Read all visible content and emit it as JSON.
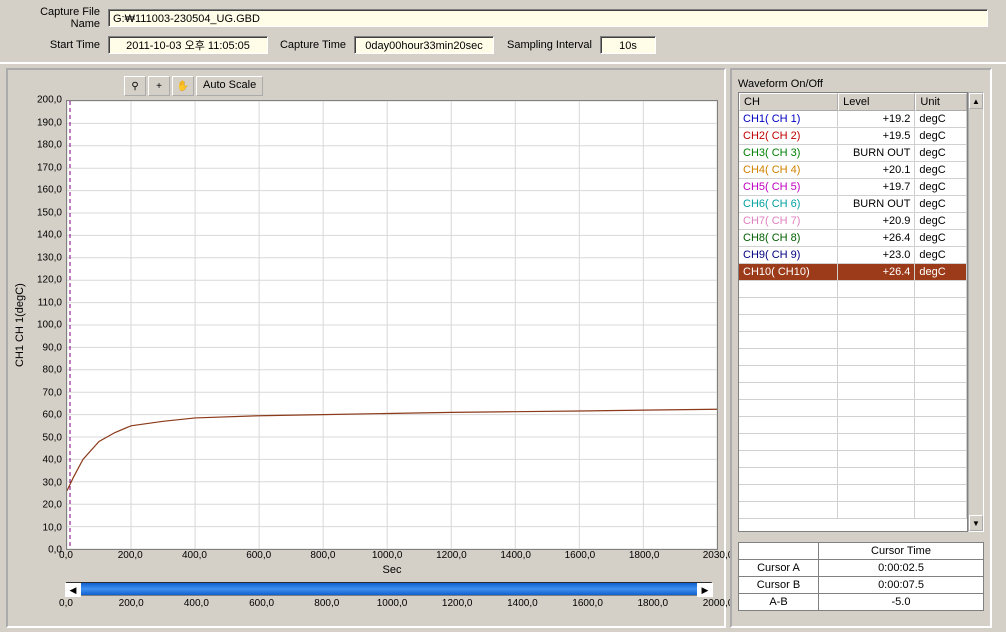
{
  "header": {
    "capture_file_label": "Capture File Name",
    "capture_file_value": "G:₩111003-230504_UG.GBD",
    "start_time_label": "Start Time",
    "start_time_value": "2011-10-03 오후 11:05:05",
    "capture_time_label": "Capture Time",
    "capture_time_value": "0day00hour33min20sec",
    "sampling_label": "Sampling Interval",
    "sampling_value": "10s"
  },
  "toolbar": {
    "zoom_icon": "⚲",
    "cross_icon": "+",
    "pan_icon": "✋",
    "autoscale_label": "Auto Scale"
  },
  "chart": {
    "type": "line",
    "y_label": "CH1  CH 1(degC)",
    "x_label": "Sec",
    "xlim": [
      0,
      2030
    ],
    "ylim": [
      0,
      200
    ],
    "x_ticks": [
      0.0,
      200.0,
      400.0,
      600.0,
      800.0,
      1000.0,
      1200.0,
      1400.0,
      1600.0,
      1800.0,
      2030.0
    ],
    "y_ticks": [
      0.0,
      10.0,
      20.0,
      30.0,
      40.0,
      50.0,
      60.0,
      70.0,
      80.0,
      90.0,
      100.0,
      110.0,
      120.0,
      130.0,
      140.0,
      150.0,
      160.0,
      170.0,
      180.0,
      190.0,
      200.0
    ],
    "grid_color": "#d8d8d8",
    "background_color": "#ffffff",
    "cursor_line_color": "#800080",
    "series": {
      "points": [
        [
          0,
          26
        ],
        [
          20,
          32
        ],
        [
          50,
          40
        ],
        [
          100,
          48
        ],
        [
          150,
          52
        ],
        [
          200,
          55
        ],
        [
          300,
          57
        ],
        [
          400,
          58.5
        ],
        [
          600,
          59.5
        ],
        [
          800,
          60
        ],
        [
          1000,
          60.5
        ],
        [
          1200,
          61
        ],
        [
          1400,
          61.3
        ],
        [
          1600,
          61.6
        ],
        [
          1800,
          62
        ],
        [
          2030,
          62.4
        ]
      ],
      "color": "#8b3a1a",
      "line_width": 1.2
    },
    "slider": {
      "ticks": [
        0.0,
        200.0,
        400.0,
        600.0,
        800.0,
        1000.0,
        1200.0,
        1400.0,
        1600.0,
        1800.0,
        2000.0
      ]
    }
  },
  "waveform": {
    "title": "Waveform On/Off",
    "columns": {
      "ch": "CH",
      "level": "Level",
      "unit": "Unit"
    },
    "col_widths": {
      "ch": 100,
      "level": 78,
      "unit": 52
    },
    "channels": [
      {
        "name": "CH1( CH 1)",
        "level": "+19.2",
        "unit": "degC",
        "color": "#0000c0",
        "selected": false
      },
      {
        "name": "CH2( CH 2)",
        "level": "+19.5",
        "unit": "degC",
        "color": "#c00000",
        "selected": false
      },
      {
        "name": "CH3( CH 3)",
        "level": "BURN OUT",
        "unit": "degC",
        "color": "#008000",
        "selected": false
      },
      {
        "name": "CH4( CH 4)",
        "level": "+20.1",
        "unit": "degC",
        "color": "#d08000",
        "selected": false
      },
      {
        "name": "CH5( CH 5)",
        "level": "+19.7",
        "unit": "degC",
        "color": "#c000c0",
        "selected": false
      },
      {
        "name": "CH6( CH 6)",
        "level": "BURN OUT",
        "unit": "degC",
        "color": "#00a0a0",
        "selected": false
      },
      {
        "name": "CH7( CH 7)",
        "level": "+20.9",
        "unit": "degC",
        "color": "#e080c0",
        "selected": false
      },
      {
        "name": "CH8( CH 8)",
        "level": "+26.4",
        "unit": "degC",
        "color": "#006000",
        "selected": false
      },
      {
        "name": "CH9( CH 9)",
        "level": "+23.0",
        "unit": "degC",
        "color": "#000080",
        "selected": false
      },
      {
        "name": "CH10( CH10)",
        "level": "+26.4",
        "unit": "degC",
        "color": "#ffffff",
        "selected": true,
        "bg": "#9b3b1a"
      }
    ],
    "empty_rows": 14
  },
  "cursor": {
    "header": "Cursor Time",
    "rows": [
      {
        "label": "Cursor A",
        "value": "0:00:02.5"
      },
      {
        "label": "Cursor B",
        "value": "0:00:07.5"
      },
      {
        "label": "A-B",
        "value": "-5.0"
      }
    ]
  }
}
